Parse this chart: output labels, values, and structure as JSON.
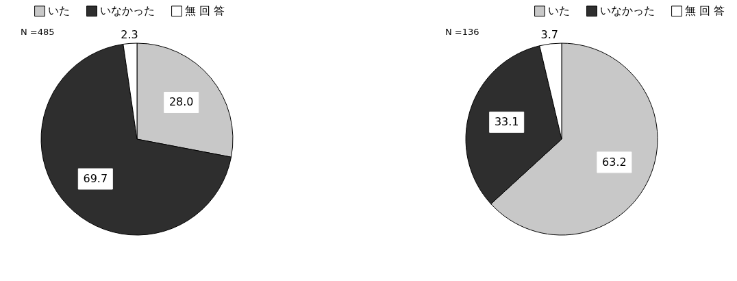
{
  "chart_data": [
    {
      "type": "pie",
      "categories": [
        "いた",
        "いなかった",
        "無 回 答"
      ],
      "values": [
        28.0,
        69.7,
        2.3
      ],
      "value_labels": [
        "28.0",
        "69.7",
        "2.3"
      ],
      "colors": [
        "#c8c8c8",
        "#2e2e2e",
        "#ffffff"
      ],
      "data_labels": true,
      "legend": "top left",
      "annotations": [
        "N =485"
      ]
    },
    {
      "type": "pie",
      "categories": [
        "いた",
        "いなかった",
        "無 回 答"
      ],
      "values": [
        63.2,
        33.1,
        3.7
      ],
      "value_labels": [
        "63.2",
        "33.1",
        "3.7"
      ],
      "colors": [
        "#c8c8c8",
        "#2e2e2e",
        "#ffffff"
      ],
      "data_labels": true,
      "legend": "top right",
      "annotations": [
        "N =136"
      ]
    }
  ]
}
